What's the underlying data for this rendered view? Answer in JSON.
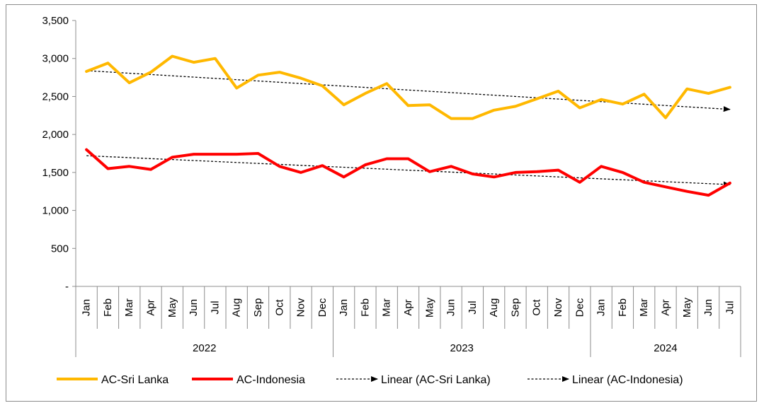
{
  "chart_data": {
    "type": "line",
    "title": "",
    "xlabel": "",
    "ylabel": "",
    "ylim": [
      0,
      3500
    ],
    "yticks": [
      0,
      500,
      1000,
      1500,
      2000,
      2500,
      3000,
      3500
    ],
    "ytick_labels": [
      "-",
      "500",
      "1,000",
      "1,500",
      "2,000",
      "2,500",
      "3,000",
      "3,500"
    ],
    "grid": false,
    "legend_position": "bottom",
    "categories": [
      "Jan",
      "Feb",
      "Mar",
      "Apr",
      "May",
      "Jun",
      "Jul",
      "Aug",
      "Sep",
      "Oct",
      "Nov",
      "Dec",
      "Jan",
      "Feb",
      "Mar",
      "Apr",
      "May",
      "Jun",
      "Jul",
      "Aug",
      "Sep",
      "Oct",
      "Nov",
      "Dec",
      "Jan",
      "Feb",
      "Mar",
      "Apr",
      "May",
      "Jun",
      "Jul"
    ],
    "groups": [
      {
        "label": "2022",
        "count": 12
      },
      {
        "label": "2023",
        "count": 12
      },
      {
        "label": "2024",
        "count": 7
      }
    ],
    "series": [
      {
        "name": "AC-Sri Lanka",
        "color": "#FFB800",
        "values": [
          2830,
          2940,
          2680,
          2820,
          3030,
          2950,
          3000,
          2610,
          2780,
          2820,
          2740,
          2640,
          2390,
          2540,
          2670,
          2380,
          2390,
          2210,
          2210,
          2320,
          2370,
          2470,
          2570,
          2350,
          2460,
          2400,
          2530,
          2220,
          2600,
          2540,
          2620
        ]
      },
      {
        "name": "AC-Indonesia",
        "color": "#FF0000",
        "values": [
          1800,
          1550,
          1580,
          1540,
          1700,
          1740,
          1740,
          1740,
          1750,
          1580,
          1500,
          1590,
          1440,
          1600,
          1680,
          1680,
          1510,
          1580,
          1480,
          1440,
          1500,
          1510,
          1530,
          1370,
          1580,
          1500,
          1370,
          1310,
          1250,
          1200,
          1360
        ]
      }
    ],
    "trendlines": [
      {
        "name": "Linear (AC-Sri Lanka)",
        "type": "linear",
        "color": "#000000",
        "start": 2840,
        "end": 2330
      },
      {
        "name": "Linear (AC-Indonesia)",
        "type": "linear",
        "color": "#000000",
        "start": 1720,
        "end": 1340
      }
    ]
  }
}
